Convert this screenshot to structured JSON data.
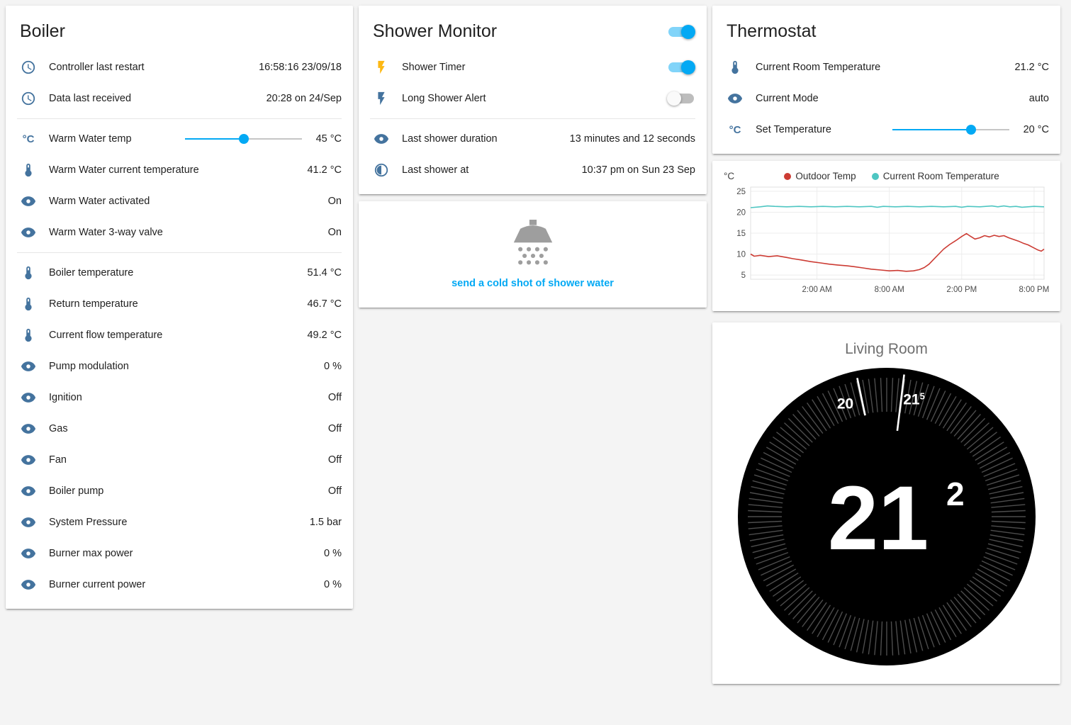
{
  "colors": {
    "accent": "#03a9f4",
    "icon": "#44739e",
    "flash": "#fdb813"
  },
  "boiler": {
    "title": "Boiler",
    "rows": [
      {
        "icon": "clock",
        "label": "Controller last restart",
        "value": "16:58:16 23/09/18"
      },
      {
        "icon": "clock",
        "label": "Data last received",
        "value": "20:28 on 24/Sep"
      },
      {
        "icon": "celsius",
        "label": "Warm Water temp",
        "value": "45 °C",
        "slider_percent": 50
      },
      {
        "icon": "thermometer",
        "label": "Warm Water current temperature",
        "value": "41.2 °C"
      },
      {
        "icon": "eye",
        "label": "Warm Water activated",
        "value": "On"
      },
      {
        "icon": "eye",
        "label": "Warm Water 3-way valve",
        "value": "On"
      },
      {
        "icon": "thermometer",
        "label": "Boiler temperature",
        "value": "51.4 °C"
      },
      {
        "icon": "thermometer",
        "label": "Return temperature",
        "value": "46.7 °C"
      },
      {
        "icon": "thermometer",
        "label": "Current flow temperature",
        "value": "49.2 °C"
      },
      {
        "icon": "eye",
        "label": "Pump modulation",
        "value": "0 %"
      },
      {
        "icon": "eye",
        "label": "Ignition",
        "value": "Off"
      },
      {
        "icon": "eye",
        "label": "Gas",
        "value": "Off"
      },
      {
        "icon": "eye",
        "label": "Fan",
        "value": "Off"
      },
      {
        "icon": "eye",
        "label": "Boiler pump",
        "value": "Off"
      },
      {
        "icon": "eye",
        "label": "System Pressure",
        "value": "1.5 bar"
      },
      {
        "icon": "eye",
        "label": "Burner max power",
        "value": "0 %"
      },
      {
        "icon": "eye",
        "label": "Burner current power",
        "value": "0 %"
      }
    ]
  },
  "shower_monitor": {
    "title": "Shower Monitor",
    "header_toggle_on": true,
    "rows": [
      {
        "icon": "flash",
        "label": "Shower Timer",
        "toggle_on": true
      },
      {
        "icon": "flash",
        "label": "Long Shower Alert",
        "toggle_on": false
      },
      {
        "icon": "eye",
        "label": "Last shower duration",
        "value": "13 minutes and 12 seconds"
      },
      {
        "icon": "clock-progress",
        "label": "Last shower at",
        "value": "10:37 pm on Sun 23 Sep"
      }
    ],
    "action": {
      "label": "send a cold shot of shower water"
    }
  },
  "thermostat": {
    "title": "Thermostat",
    "rows": [
      {
        "icon": "thermometer",
        "label": "Current Room Temperature",
        "value": "21.2 °C"
      },
      {
        "icon": "eye",
        "label": "Current Mode",
        "value": "auto"
      },
      {
        "icon": "celsius",
        "label": "Set Temperature",
        "value": "20 °C",
        "slider_percent": 67
      }
    ]
  },
  "chart_data": {
    "type": "line",
    "unit": "°C",
    "legend": [
      {
        "label": "Outdoor Temp",
        "color": "#cc3b33"
      },
      {
        "label": "Current Room Temperature",
        "color": "#4ec6c2"
      }
    ],
    "ylim": [
      4,
      26
    ],
    "y_ticks": [
      5,
      10,
      15,
      20,
      25
    ],
    "x_range": [
      0,
      24.33
    ],
    "x_ticks": [
      {
        "pos": 5.5,
        "label": "2:00 AM"
      },
      {
        "pos": 11.5,
        "label": "8:00 AM"
      },
      {
        "pos": 17.5,
        "label": "2:00 PM"
      },
      {
        "pos": 23.5,
        "label": "8:00 PM"
      }
    ],
    "series": [
      {
        "name": "Outdoor Temp",
        "color": "#cc3b33",
        "points": [
          [
            0,
            10.0
          ],
          [
            0.3,
            9.5
          ],
          [
            0.8,
            9.7
          ],
          [
            1.5,
            9.4
          ],
          [
            2.2,
            9.6
          ],
          [
            3.0,
            9.2
          ],
          [
            3.5,
            8.9
          ],
          [
            4.2,
            8.6
          ],
          [
            5.0,
            8.2
          ],
          [
            5.8,
            7.9
          ],
          [
            6.5,
            7.6
          ],
          [
            7.2,
            7.4
          ],
          [
            8.0,
            7.2
          ],
          [
            8.6,
            7.0
          ],
          [
            9.3,
            6.7
          ],
          [
            10.0,
            6.4
          ],
          [
            10.8,
            6.2
          ],
          [
            11.5,
            6.0
          ],
          [
            12.2,
            6.1
          ],
          [
            12.9,
            5.9
          ],
          [
            13.5,
            6.0
          ],
          [
            14.0,
            6.3
          ],
          [
            14.4,
            6.8
          ],
          [
            14.8,
            7.6
          ],
          [
            15.2,
            8.8
          ],
          [
            15.6,
            10.0
          ],
          [
            16.0,
            11.2
          ],
          [
            16.5,
            12.3
          ],
          [
            17.0,
            13.2
          ],
          [
            17.5,
            14.2
          ],
          [
            17.9,
            14.9
          ],
          [
            18.2,
            14.3
          ],
          [
            18.6,
            13.6
          ],
          [
            19.0,
            13.9
          ],
          [
            19.4,
            14.4
          ],
          [
            19.8,
            14.1
          ],
          [
            20.2,
            14.5
          ],
          [
            20.6,
            14.2
          ],
          [
            21.0,
            14.4
          ],
          [
            21.4,
            13.9
          ],
          [
            21.8,
            13.5
          ],
          [
            22.2,
            13.1
          ],
          [
            22.6,
            12.6
          ],
          [
            23.0,
            12.2
          ],
          [
            23.4,
            11.6
          ],
          [
            23.8,
            11.0
          ],
          [
            24.1,
            10.7
          ],
          [
            24.33,
            11.2
          ]
        ]
      },
      {
        "name": "Current Room Temperature",
        "color": "#4ec6c2",
        "points": [
          [
            0,
            21.1
          ],
          [
            0.8,
            21.3
          ],
          [
            1.4,
            21.5
          ],
          [
            2.0,
            21.4
          ],
          [
            3.0,
            21.3
          ],
          [
            4.0,
            21.4
          ],
          [
            5.0,
            21.3
          ],
          [
            6.0,
            21.4
          ],
          [
            7.0,
            21.3
          ],
          [
            8.0,
            21.4
          ],
          [
            9.0,
            21.3
          ],
          [
            10.0,
            21.4
          ],
          [
            10.5,
            21.2
          ],
          [
            11.0,
            21.4
          ],
          [
            12.0,
            21.3
          ],
          [
            13.0,
            21.4
          ],
          [
            14.0,
            21.3
          ],
          [
            15.0,
            21.4
          ],
          [
            16.0,
            21.3
          ],
          [
            17.0,
            21.4
          ],
          [
            17.5,
            21.2
          ],
          [
            18.0,
            21.4
          ],
          [
            19.0,
            21.3
          ],
          [
            20.0,
            21.5
          ],
          [
            20.5,
            21.3
          ],
          [
            21.0,
            21.5
          ],
          [
            21.5,
            21.3
          ],
          [
            22.0,
            21.4
          ],
          [
            22.5,
            21.2
          ],
          [
            23.0,
            21.3
          ],
          [
            23.5,
            21.4
          ],
          [
            24.33,
            21.3
          ]
        ]
      }
    ]
  },
  "dial": {
    "room_name": "Living Room",
    "current_temp_whole": "21",
    "current_temp_decimal": "2",
    "scale_left_label": "20",
    "scale_right_label": "21",
    "scale_right_sup": "5"
  }
}
